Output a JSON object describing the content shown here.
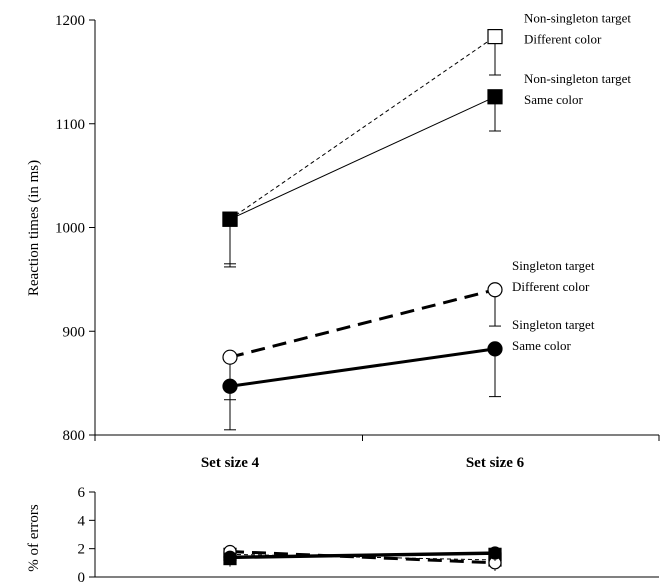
{
  "chart_data": [
    {
      "type": "line",
      "ylabel": "Reaction times (in ms)",
      "categories": [
        "Set size 4",
        "Set size 6"
      ],
      "ylim": [
        800,
        1200
      ],
      "yticks": [
        "800",
        "900",
        "1000",
        "1100",
        "1200"
      ],
      "series": [
        {
          "name": "Non-singleton target\nDifferent color",
          "marker": "open-square",
          "line": "short-dash",
          "values": [
            1008,
            1184
          ],
          "error_lower": [
            962,
            1147
          ]
        },
        {
          "name": "Non-singleton target\nSame color",
          "marker": "filled-square",
          "line": "thin-solid",
          "values": [
            1008,
            1126
          ],
          "error_lower": [
            965,
            1093
          ]
        },
        {
          "name": "Singleton target\nDifferent color",
          "marker": "open-circle",
          "line": "long-dash",
          "values": [
            875,
            940
          ],
          "error_lower": [
            834,
            905
          ]
        },
        {
          "name": "Singleton target\nSame color",
          "marker": "filled-circle",
          "line": "thick-solid",
          "values": [
            847,
            883
          ],
          "error_lower": [
            805,
            837
          ]
        }
      ]
    },
    {
      "type": "line",
      "ylabel": "% of errors",
      "categories": [
        "Set size 4",
        "Set size 6"
      ],
      "ylim": [
        0,
        6
      ],
      "yticks": [
        "0",
        "2",
        "4",
        "6"
      ],
      "series": [
        {
          "marker": "open-square",
          "line": "short-dash",
          "values": [
            1.6,
            1.2
          ]
        },
        {
          "marker": "filled-square",
          "line": "thin-solid",
          "values": [
            1.3,
            1.6
          ]
        },
        {
          "marker": "open-circle",
          "line": "long-dash",
          "values": [
            1.8,
            1.0
          ]
        },
        {
          "marker": "filled-circle",
          "line": "thick-solid",
          "values": [
            1.4,
            1.7
          ]
        }
      ]
    }
  ]
}
